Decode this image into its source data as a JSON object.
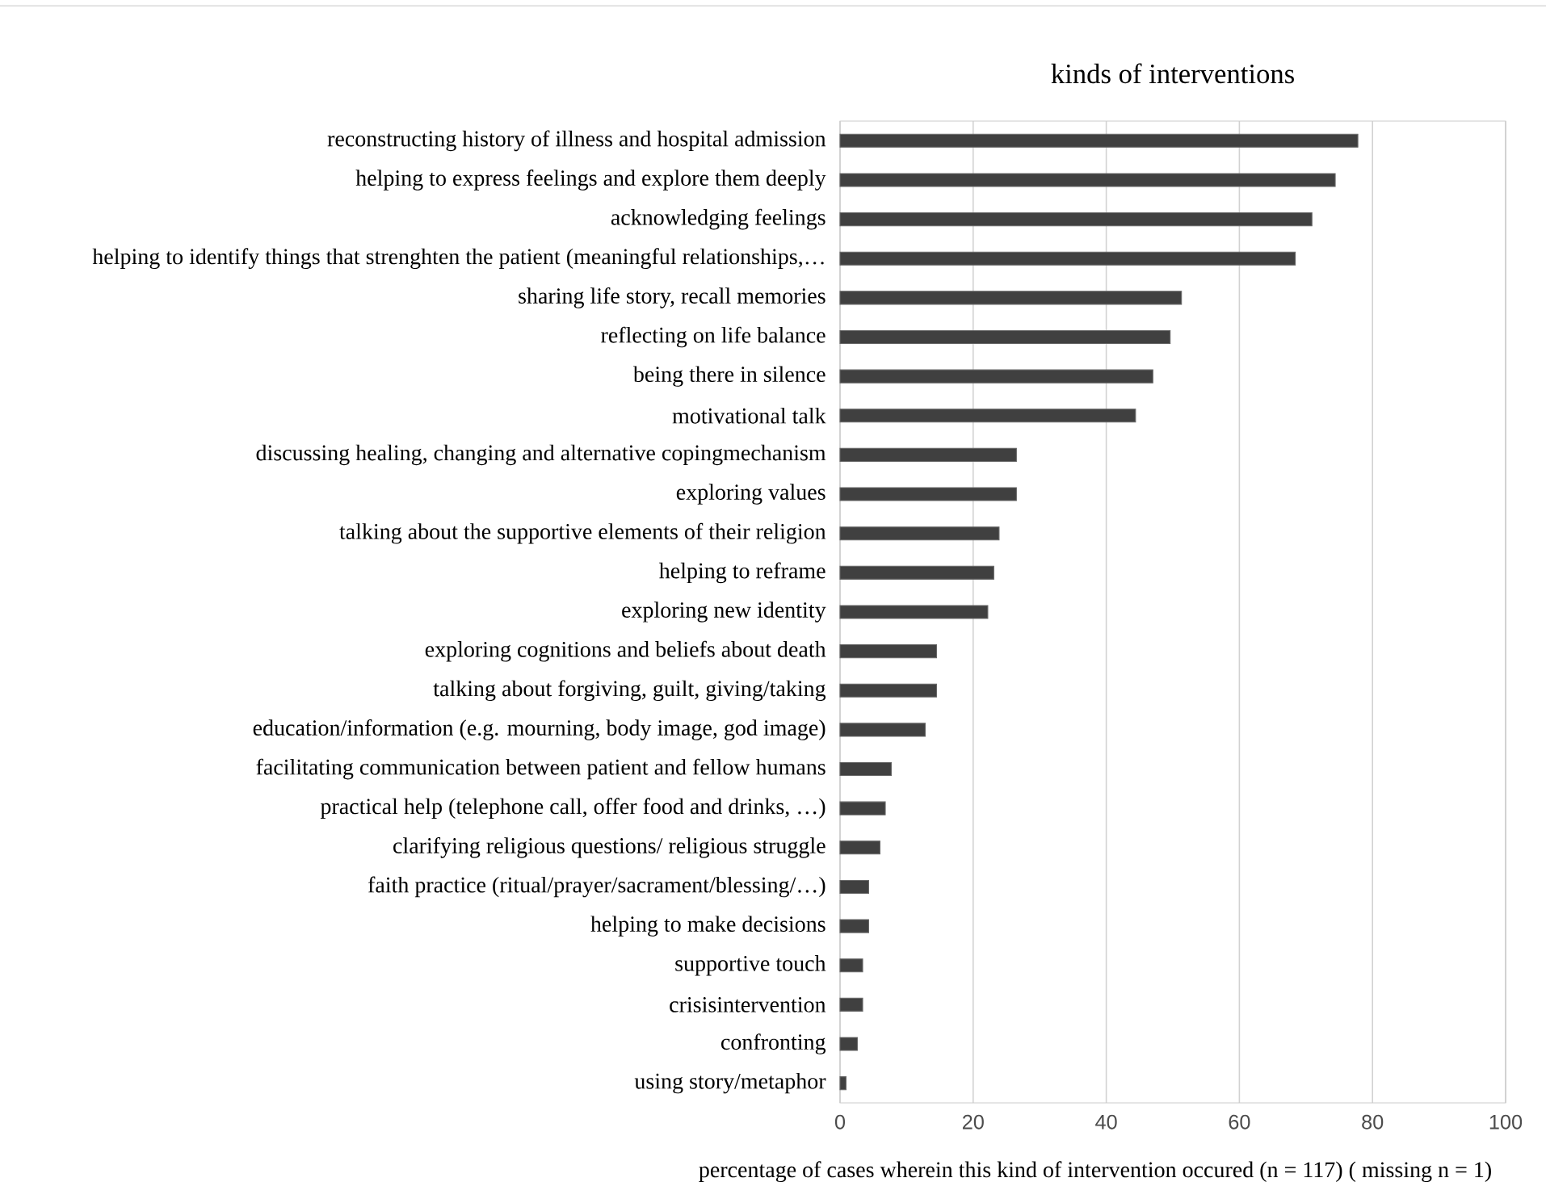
{
  "chart_data": {
    "type": "bar",
    "orientation": "horizontal",
    "title": "kinds of interventions",
    "xlabel": "percentage of cases wherein this kind of intervention occured  (n = 117) ( missing n = 1)",
    "categories": [
      "reconstructing history of illness and hospital admission",
      "helping to express feelings and explore them deeply",
      "acknowledging feelings",
      "helping to identify things that strenghten the patient (meaningful relationships,…",
      "sharing life story, recall memories",
      "reflecting on life balance",
      "being there in silence",
      "motivational talk",
      "discussing healing, changing and alternative copingmechanism",
      "exploring values",
      "talking about the supportive elements of their religion",
      "helping to reframe",
      "exploring new identity",
      "exploring cognitions and beliefs about death",
      "talking about forgiving, guilt, giving/taking",
      "education/information (e.g. mourning, body image, god image)",
      "facilitating communication between patient and fellow humans",
      "practical help (telephone call, offer food and drinks, …)",
      "clarifying religious questions/ religious struggle",
      "faith practice (ritual/prayer/sacrament/blessing/…)",
      "helping to make decisions",
      "supportive touch",
      "crisisintervention",
      "confronting",
      "using story/metaphor"
    ],
    "values": [
      77.8,
      74.4,
      70.9,
      68.4,
      51.3,
      49.6,
      47.0,
      44.4,
      26.5,
      26.5,
      23.9,
      23.1,
      22.2,
      14.5,
      14.5,
      12.8,
      7.7,
      6.8,
      6.0,
      4.3,
      4.3,
      3.4,
      3.4,
      2.6,
      0.9
    ],
    "color": "#404040",
    "xlim": [
      0,
      100
    ],
    "xticks": [
      0,
      20,
      40,
      60,
      80,
      100
    ],
    "grid": "x"
  }
}
